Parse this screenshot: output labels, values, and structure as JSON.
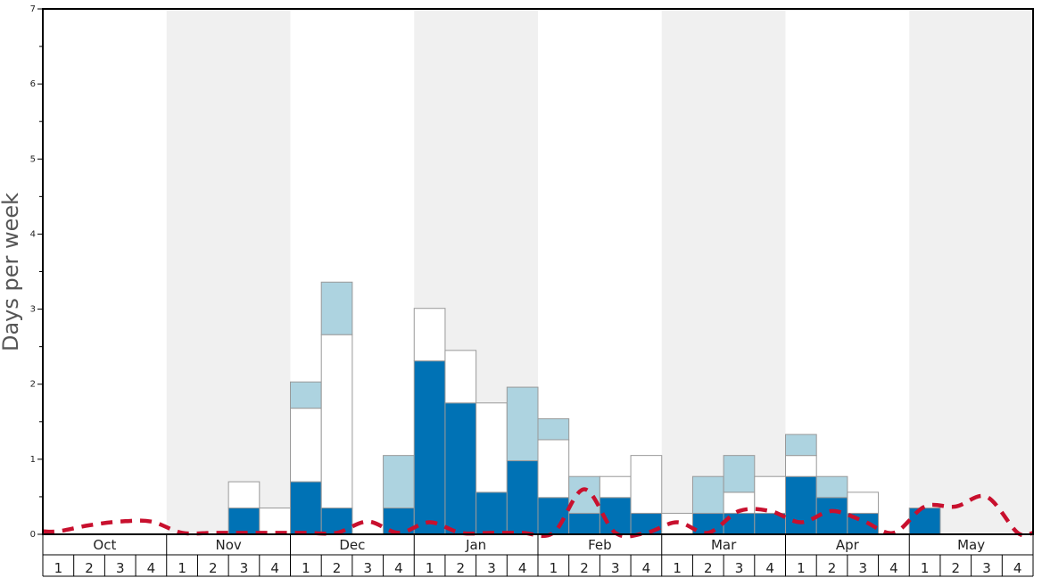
{
  "chart_data": {
    "type": "bar",
    "ylabel": "Days per week",
    "ylim": [
      0,
      7
    ],
    "yticks": [
      "0",
      "1",
      "2",
      "3",
      "4",
      "5",
      "6",
      "7"
    ],
    "months": [
      "Oct",
      "Nov",
      "Dec",
      "Jan",
      "Feb",
      "Mar",
      "Apr",
      "May"
    ],
    "week_labels": [
      "1",
      "2",
      "3",
      "4"
    ],
    "shaded_months": [
      "Nov",
      "Jan",
      "Mar",
      "May"
    ],
    "colors": {
      "bottom": "#0072b5",
      "middle": "#ffffff",
      "top": "#add3e0",
      "dashed_line": "#c8102e",
      "shade": "#f0f0f0",
      "bar_edge": "#999999"
    },
    "series": [
      {
        "role": "bottom",
        "values": [
          0,
          0,
          0,
          0,
          0,
          0,
          0.35,
          0,
          0.7,
          0.35,
          0,
          0.35,
          2.31,
          1.75,
          0.56,
          0.98,
          0.49,
          0.28,
          0.49,
          0.28,
          0,
          0.28,
          0.28,
          0.28,
          0.77,
          0.49,
          0.28,
          0,
          0.35,
          0,
          0,
          0
        ]
      },
      {
        "role": "middle",
        "values": [
          0,
          0,
          0,
          0,
          0,
          0,
          0.35,
          0.35,
          0.98,
          2.31,
          0,
          0,
          0.7,
          0.7,
          1.19,
          0,
          0.77,
          0,
          0.28,
          0.77,
          0.28,
          0,
          0.28,
          0.49,
          0.28,
          0,
          0.28,
          0,
          0,
          0,
          0,
          0
        ]
      },
      {
        "role": "top",
        "values": [
          0,
          0,
          0,
          0,
          0,
          0,
          0,
          0,
          0.35,
          0.7,
          0,
          0.7,
          0,
          0,
          0,
          0.98,
          0.28,
          0.49,
          0,
          0,
          0,
          0.49,
          0.49,
          0,
          0.28,
          0.28,
          0,
          0,
          0,
          0,
          0,
          0
        ]
      },
      {
        "role": "dashed-line",
        "values": [
          0.04,
          0.12,
          0.17,
          0.17,
          0.02,
          0.02,
          0.02,
          0.02,
          0.02,
          0.02,
          0.17,
          0.02,
          0.16,
          0.02,
          0.02,
          0.02,
          0.02,
          0.6,
          0.02,
          0.02,
          0.16,
          0.02,
          0.31,
          0.31,
          0.16,
          0.31,
          0.18,
          0.02,
          0.37,
          0.37,
          0.5,
          0.02
        ]
      }
    ]
  }
}
